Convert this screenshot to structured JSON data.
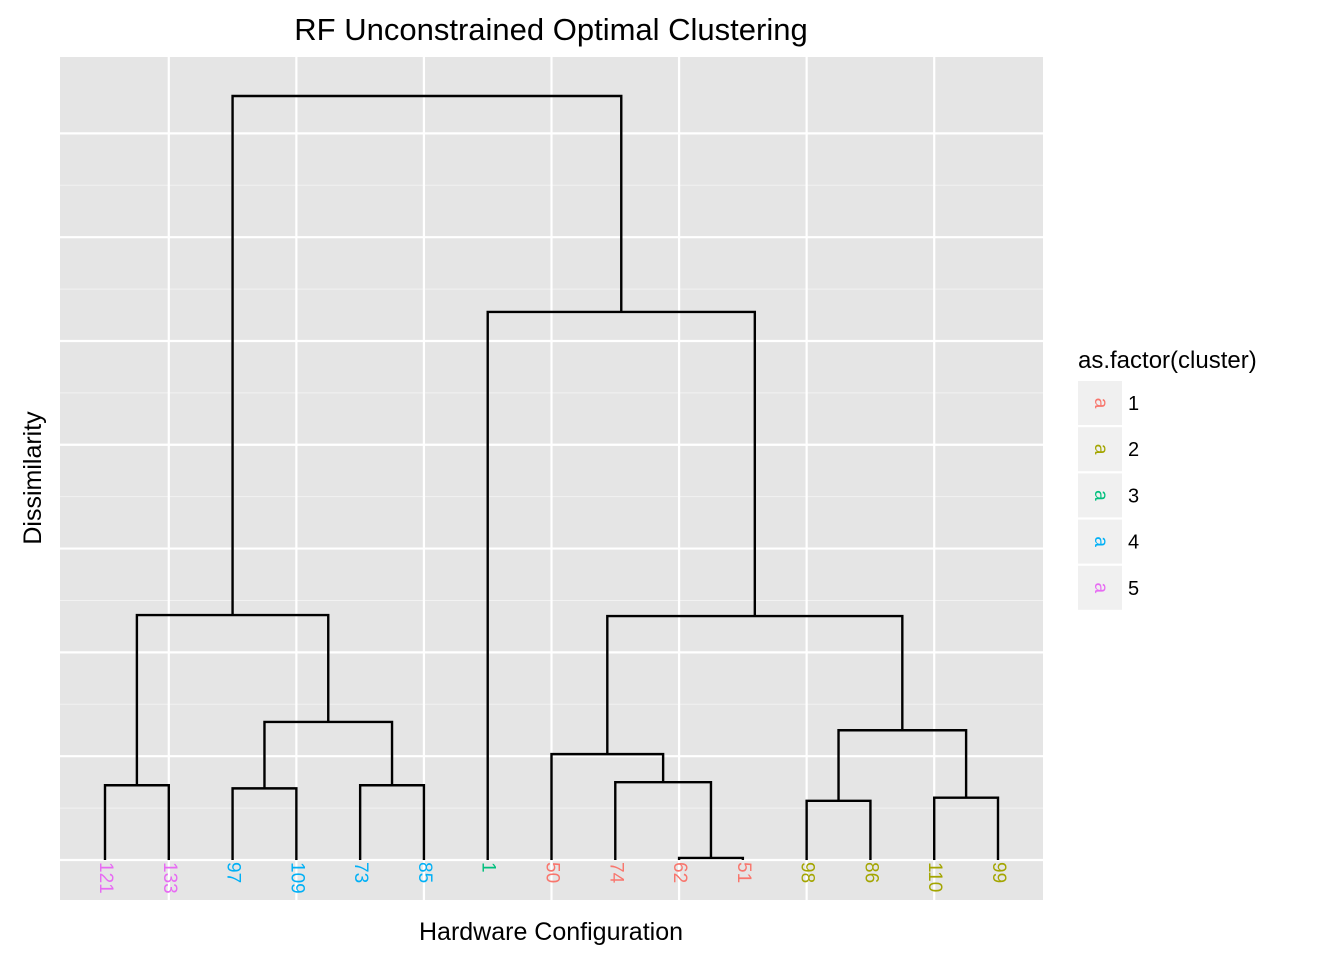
{
  "chart_data": {
    "type": "dendrogram",
    "title": "RF Unconstrained Optimal Clustering",
    "xlabel": "Hardware Configuration",
    "ylabel": "Dissimilarity",
    "ylim": [
      0,
      7.9
    ],
    "y_gridlines": [
      0,
      1,
      2,
      3,
      4,
      5,
      6,
      7
    ],
    "y_tick_labels_shown": false,
    "grid": true,
    "background": "#e5e5e5",
    "leaves": [
      {
        "label": "121",
        "cluster": "5"
      },
      {
        "label": "133",
        "cluster": "5"
      },
      {
        "label": "97",
        "cluster": "4"
      },
      {
        "label": "109",
        "cluster": "4"
      },
      {
        "label": "73",
        "cluster": "4"
      },
      {
        "label": "85",
        "cluster": "4"
      },
      {
        "label": "1",
        "cluster": "3"
      },
      {
        "label": "50",
        "cluster": "1"
      },
      {
        "label": "74",
        "cluster": "1"
      },
      {
        "label": "62",
        "cluster": "1"
      },
      {
        "label": "51",
        "cluster": "1"
      },
      {
        "label": "98",
        "cluster": "2"
      },
      {
        "label": "86",
        "cluster": "2"
      },
      {
        "label": "110",
        "cluster": "2"
      },
      {
        "label": "99",
        "cluster": "2"
      }
    ],
    "merges": [
      {
        "left": "121",
        "right": "133",
        "height": 0.72
      },
      {
        "left": "97",
        "right": "109",
        "height": 0.69
      },
      {
        "left": "73",
        "right": "85",
        "height": 0.72
      },
      {
        "left": "62",
        "right": "51",
        "height": 0.02
      },
      {
        "left": "98",
        "right": "86",
        "height": 0.57
      },
      {
        "left": "110",
        "right": "99",
        "height": 0.6
      },
      {
        "left": "74",
        "right": "62+51",
        "height": 0.75
      },
      {
        "left": "97+109",
        "right": "73+85",
        "height": 1.33
      },
      {
        "left": "98+86",
        "right": "110+99",
        "height": 1.25
      },
      {
        "left": "50",
        "right": "74+62+51",
        "height": 1.02
      },
      {
        "left": "121+133",
        "right": "97+109+73+85",
        "height": 2.36
      },
      {
        "left": "50+74+62+51",
        "right": "98+86+110+99",
        "height": 2.35
      },
      {
        "left": "1",
        "right": "50+74+62+51+98+86+110+99",
        "height": 5.28
      },
      {
        "left": "121+133+97+109+73+85",
        "right": "1+50+74+62+51+98+86+110+99",
        "height": 7.36
      }
    ],
    "legend": {
      "title": "as.factor(cluster)",
      "glyph": "a",
      "placement": "right",
      "items": [
        {
          "label": "1",
          "color": "#f8766d"
        },
        {
          "label": "2",
          "color": "#a3a500"
        },
        {
          "label": "3",
          "color": "#00bf7d"
        },
        {
          "label": "4",
          "color": "#00b0f6"
        },
        {
          "label": "5",
          "color": "#e76bf3"
        }
      ]
    }
  }
}
